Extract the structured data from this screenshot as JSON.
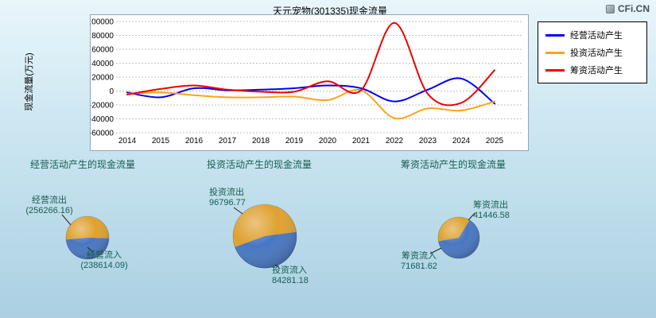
{
  "page": {
    "watermark": "CFi.CN"
  },
  "chart_data": [
    {
      "type": "line",
      "title": "天元宠物(301335)现金流量",
      "xlabel": "",
      "ylabel": "现金流量(万元)",
      "x": [
        2014,
        2015,
        2016,
        2017,
        2018,
        2019,
        2020,
        2021,
        2022,
        2023,
        2024,
        2025
      ],
      "ylim": [
        -60000,
        100000
      ],
      "ytick_step": 20000,
      "grid": true,
      "legend_position": "outside-top-right",
      "unit": "万元",
      "series": [
        {
          "name": "经营活动产生",
          "color": "#0000ee",
          "values": [
            -2000,
            -9000,
            4000,
            1000,
            2000,
            4000,
            8000,
            4000,
            -15000,
            2000,
            18000,
            -18000
          ]
        },
        {
          "name": "投资活动产生",
          "color": "#ffa11e",
          "values": [
            -4000,
            -2000,
            -6000,
            -9000,
            -9000,
            -8000,
            -13000,
            1000,
            -39000,
            -25000,
            -28000,
            -15000
          ]
        },
        {
          "name": "筹资活动产生",
          "color": "#ee0000",
          "values": [
            -5000,
            3000,
            8000,
            2000,
            -1000,
            -1000,
            14000,
            1000,
            98000,
            -4000,
            -17000,
            30000
          ]
        }
      ]
    },
    {
      "type": "pie",
      "title": "经营活动产生的现金流量",
      "slices": [
        {
          "label": "经营流出",
          "value": 256266.16,
          "display": "(256266.16)",
          "color": "#dfa130"
        },
        {
          "label": "经营流入",
          "value": 238614.09,
          "display": "(238614.09)",
          "color": "#4776c2"
        }
      ]
    },
    {
      "type": "pie",
      "title": "投资活动产生的现金流量",
      "slices": [
        {
          "label": "投资流出",
          "value": 96796.77,
          "display": "96796.77",
          "color": "#dfa130"
        },
        {
          "label": "投资流入",
          "value": 84281.18,
          "display": "84281.18",
          "color": "#4776c2"
        }
      ]
    },
    {
      "type": "pie",
      "title": "筹资活动产生的现金流量",
      "slices": [
        {
          "label": "筹资流出",
          "value": 41446.58,
          "display": "41446.58",
          "color": "#dfa130"
        },
        {
          "label": "筹资流入",
          "value": 71681.62,
          "display": "71681.62",
          "color": "#4776c2"
        }
      ]
    }
  ]
}
